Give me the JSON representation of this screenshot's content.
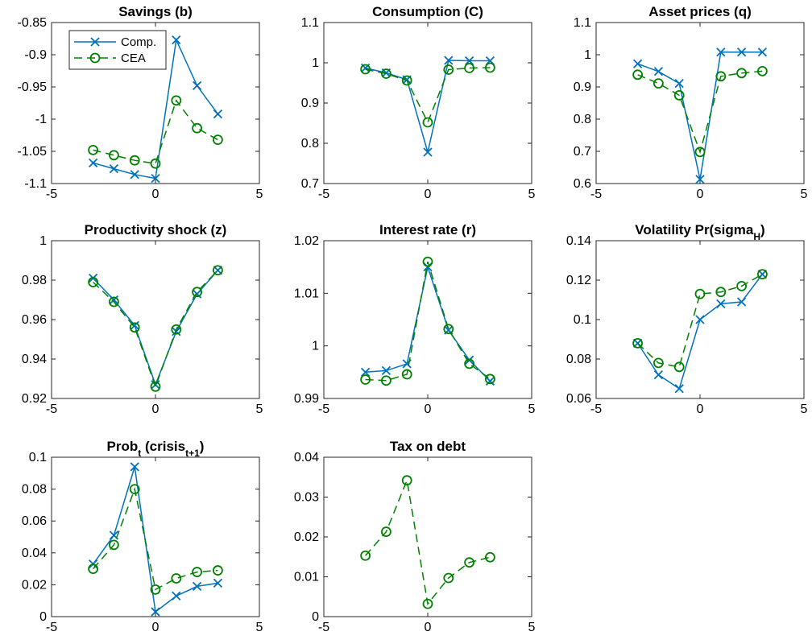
{
  "colors": {
    "comp": "#0072BD",
    "cea": "#008000",
    "axis": "#262626"
  },
  "legend": {
    "entries": [
      "Comp.",
      "CEA"
    ],
    "placement": "top-left",
    "panel": 0
  },
  "chart_data": [
    {
      "type": "line",
      "title": "Savings (b)",
      "title_parts": [
        {
          "text": "Savings (b)"
        }
      ],
      "x": [
        -3,
        -2,
        -1,
        0,
        1,
        2,
        3
      ],
      "xlim": [
        -5,
        5
      ],
      "xticks": [
        -5,
        0,
        5
      ],
      "xtick_labels": [
        "-5",
        "0",
        "5"
      ],
      "ylim": [
        -1.1,
        -0.85
      ],
      "yticks": [
        -1.1,
        -1.05,
        -1,
        -0.95,
        -0.9,
        -0.85
      ],
      "ytick_labels": [
        "-1.1",
        "-1.05",
        "-1",
        "-0.95",
        "-0.9",
        "-0.85"
      ],
      "series": [
        {
          "name": "Comp.",
          "values": [
            -1.068,
            -1.077,
            -1.086,
            -1.092,
            -0.877,
            -0.948,
            -0.992
          ]
        },
        {
          "name": "CEA",
          "values": [
            -1.048,
            -1.056,
            -1.064,
            -1.069,
            -0.971,
            -1.014,
            -1.032
          ]
        }
      ]
    },
    {
      "type": "line",
      "title": "Consumption (C)",
      "title_parts": [
        {
          "text": "Consumption (C)"
        }
      ],
      "x": [
        -3,
        -2,
        -1,
        0,
        1,
        2,
        3
      ],
      "xlim": [
        -5,
        5
      ],
      "xticks": [
        -5,
        0,
        5
      ],
      "xtick_labels": [
        "-5",
        "0",
        "5"
      ],
      "ylim": [
        0.7,
        1.1
      ],
      "yticks": [
        0.7,
        0.8,
        0.9,
        1,
        1.1
      ],
      "ytick_labels": [
        "0.7",
        "0.8",
        "0.9",
        "1",
        "1.1"
      ],
      "series": [
        {
          "name": "Comp.",
          "values": [
            0.987,
            0.975,
            0.958,
            0.778,
            1.006,
            1.005,
            1.005
          ]
        },
        {
          "name": "CEA",
          "values": [
            0.984,
            0.973,
            0.956,
            0.852,
            0.983,
            0.987,
            0.988
          ]
        }
      ]
    },
    {
      "type": "line",
      "title": "Asset prices (q)",
      "title_parts": [
        {
          "text": "Asset prices (q)"
        }
      ],
      "x": [
        -3,
        -2,
        -1,
        0,
        1,
        2,
        3
      ],
      "xlim": [
        -5,
        5
      ],
      "xticks": [
        -5,
        0,
        5
      ],
      "xtick_labels": [
        "-5",
        "0",
        "5"
      ],
      "ylim": [
        0.6,
        1.1
      ],
      "yticks": [
        0.6,
        0.7,
        0.8,
        0.9,
        1,
        1.1
      ],
      "ytick_labels": [
        "0.6",
        "0.7",
        "0.8",
        "0.9",
        "1",
        "1.1"
      ],
      "series": [
        {
          "name": "Comp.",
          "values": [
            0.972,
            0.948,
            0.911,
            0.613,
            1.008,
            1.008,
            1.008
          ]
        },
        {
          "name": "CEA",
          "values": [
            0.938,
            0.911,
            0.874,
            0.698,
            0.933,
            0.943,
            0.949
          ]
        }
      ]
    },
    {
      "type": "line",
      "title": "Productivity shock (z)",
      "title_parts": [
        {
          "text": "Productivity shock (z)"
        }
      ],
      "x": [
        -3,
        -2,
        -1,
        0,
        1,
        2,
        3
      ],
      "xlim": [
        -5,
        5
      ],
      "xticks": [
        -5,
        0,
        5
      ],
      "xtick_labels": [
        "-5",
        "0",
        "5"
      ],
      "ylim": [
        0.92,
        1
      ],
      "yticks": [
        0.92,
        0.94,
        0.96,
        0.98,
        1
      ],
      "ytick_labels": [
        "0.92",
        "0.94",
        "0.96",
        "0.98",
        "1"
      ],
      "series": [
        {
          "name": "Comp.",
          "values": [
            0.981,
            0.97,
            0.957,
            0.927,
            0.954,
            0.973,
            0.985
          ]
        },
        {
          "name": "CEA",
          "values": [
            0.979,
            0.969,
            0.956,
            0.926,
            0.955,
            0.974,
            0.985
          ]
        }
      ]
    },
    {
      "type": "line",
      "title": "Interest rate (r)",
      "title_parts": [
        {
          "text": "Interest rate (r)"
        }
      ],
      "x": [
        -3,
        -2,
        -1,
        0,
        1,
        2,
        3
      ],
      "xlim": [
        -5,
        5
      ],
      "xticks": [
        -5,
        0,
        5
      ],
      "xtick_labels": [
        "-5",
        "0",
        "5"
      ],
      "ylim": [
        0.99,
        1.02
      ],
      "yticks": [
        0.99,
        1,
        1.01,
        1.02
      ],
      "ytick_labels": [
        "0.99",
        "1",
        "1.01",
        "1.02"
      ],
      "series": [
        {
          "name": "Comp.",
          "values": [
            0.995,
            0.9953,
            0.9966,
            1.015,
            1.003,
            0.9973,
            0.9933
          ]
        },
        {
          "name": "CEA",
          "values": [
            0.9936,
            0.9934,
            0.9946,
            1.016,
            1.0032,
            0.9966,
            0.9937
          ]
        }
      ]
    },
    {
      "type": "line",
      "title": "Volatility Pr(sigma_H)",
      "title_parts": [
        {
          "text": "Volatility Pr(sigma"
        },
        {
          "text": "H",
          "sub": true
        },
        {
          "text": ")"
        }
      ],
      "x": [
        -3,
        -2,
        -1,
        0,
        1,
        2,
        3
      ],
      "xlim": [
        -5,
        5
      ],
      "xticks": [
        -5,
        0,
        5
      ],
      "xtick_labels": [
        "-5",
        "0",
        "5"
      ],
      "ylim": [
        0.06,
        0.14
      ],
      "yticks": [
        0.06,
        0.08,
        0.1,
        0.12,
        0.14
      ],
      "ytick_labels": [
        "0.06",
        "0.08",
        "0.1",
        "0.12",
        "0.14"
      ],
      "series": [
        {
          "name": "Comp.",
          "values": [
            0.088,
            0.072,
            0.065,
            0.1,
            0.108,
            0.109,
            0.123
          ]
        },
        {
          "name": "CEA",
          "values": [
            0.088,
            0.078,
            0.076,
            0.113,
            0.114,
            0.117,
            0.123
          ]
        }
      ]
    },
    {
      "type": "line",
      "title": "Prob_t (crisis_t+1)",
      "title_parts": [
        {
          "text": "Prob"
        },
        {
          "text": "t",
          "sub": true
        },
        {
          "text": " (crisis"
        },
        {
          "text": "t+1",
          "sub": true
        },
        {
          "text": ")"
        }
      ],
      "x": [
        -3,
        -2,
        -1,
        0,
        1,
        2,
        3
      ],
      "xlim": [
        -5,
        5
      ],
      "xticks": [
        -5,
        0,
        5
      ],
      "xtick_labels": [
        "-5",
        "0",
        "5"
      ],
      "ylim": [
        0,
        0.1
      ],
      "yticks": [
        0,
        0.02,
        0.04,
        0.06,
        0.08,
        0.1
      ],
      "ytick_labels": [
        "0",
        "0.02",
        "0.04",
        "0.06",
        "0.08",
        "0.1"
      ],
      "series": [
        {
          "name": "Comp.",
          "values": [
            0.033,
            0.051,
            0.094,
            0.003,
            0.013,
            0.019,
            0.021
          ]
        },
        {
          "name": "CEA",
          "values": [
            0.03,
            0.045,
            0.08,
            0.017,
            0.024,
            0.028,
            0.029
          ]
        }
      ]
    },
    {
      "type": "line",
      "title": "Tax on debt",
      "title_parts": [
        {
          "text": "Tax on debt"
        }
      ],
      "x": [
        -3,
        -2,
        -1,
        0,
        1,
        2,
        3
      ],
      "xlim": [
        -5,
        5
      ],
      "xticks": [
        -5,
        0,
        5
      ],
      "xtick_labels": [
        "-5",
        "0",
        "5"
      ],
      "ylim": [
        0,
        0.04
      ],
      "yticks": [
        0,
        0.01,
        0.02,
        0.03,
        0.04
      ],
      "ytick_labels": [
        "0",
        "0.01",
        "0.02",
        "0.03",
        "0.04"
      ],
      "series": [
        {
          "name": "CEA",
          "values": [
            0.0153,
            0.0213,
            0.0342,
            0.0032,
            0.0097,
            0.0136,
            0.0149
          ]
        }
      ]
    }
  ]
}
